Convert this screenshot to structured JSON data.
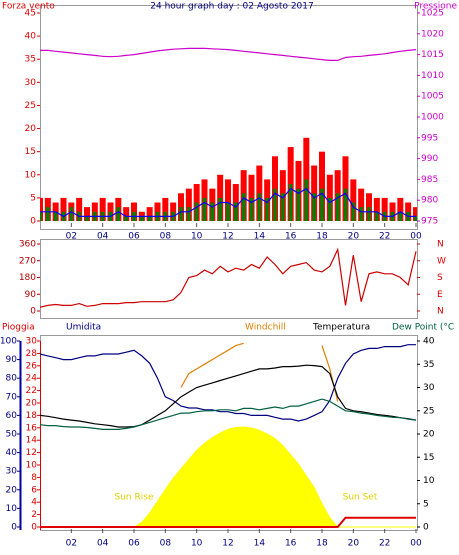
{
  "chart_data": [
    {
      "type": "bar",
      "title": "24 hour graph day : 02 Agosto 2017",
      "ylabel": "Forza vento",
      "y2label": "Pressione",
      "x": [
        0,
        0.5,
        1,
        1.5,
        2,
        2.5,
        3,
        3.5,
        4,
        4.5,
        5,
        5.5,
        6,
        6.5,
        7,
        7.5,
        8,
        8.5,
        9,
        9.5,
        10,
        10.5,
        11,
        11.5,
        12,
        12.5,
        13,
        13.5,
        14,
        14.5,
        15,
        15.5,
        16,
        16.5,
        17,
        17.5,
        18,
        18.5,
        19,
        19.5,
        20,
        20.5,
        21,
        21.5,
        22,
        22.5,
        23,
        23.5,
        24
      ],
      "xticks": [
        {
          "value": 2,
          "label": "02"
        },
        {
          "value": 4,
          "label": "04"
        },
        {
          "value": 6,
          "label": "06"
        },
        {
          "value": 8,
          "label": "08"
        },
        {
          "value": 10,
          "label": "10"
        },
        12,
        14,
        16,
        18,
        20,
        22,
        {
          "value": 24,
          "label": "00"
        }
      ],
      "ylim": [
        0,
        45
      ],
      "yticks": [
        0,
        5,
        10,
        15,
        20,
        25,
        30,
        35,
        40,
        45
      ],
      "y2lim": [
        975,
        1025
      ],
      "y2ticks": [
        975,
        980,
        985,
        990,
        995,
        1000,
        1005,
        1010,
        1015,
        1020,
        1025
      ],
      "series": [
        {
          "kind": "bar",
          "color": "#ff0000",
          "values": [
            5,
            5,
            4,
            5,
            4,
            5,
            3,
            4,
            5,
            4,
            5,
            3,
            4,
            2,
            3,
            4,
            5,
            4,
            6,
            7,
            8,
            9,
            7,
            10,
            9,
            8,
            11,
            10,
            12,
            9,
            14,
            11,
            16,
            13,
            18,
            12,
            15,
            10,
            11,
            14,
            9,
            7,
            6,
            5,
            5,
            4,
            5,
            4,
            3
          ]
        },
        {
          "kind": "bar",
          "color": "#008000",
          "values": [
            2,
            3,
            2,
            2,
            3,
            2,
            1,
            2,
            2,
            2,
            3,
            1,
            2,
            1,
            1,
            2,
            2,
            2,
            3,
            3,
            4,
            5,
            4,
            5,
            4,
            4,
            6,
            5,
            6,
            5,
            7,
            6,
            8,
            7,
            9,
            6,
            7,
            5,
            6,
            7,
            4,
            3,
            3,
            2,
            2,
            2,
            2,
            2,
            1
          ]
        },
        {
          "kind": "line",
          "color": "#0000ff",
          "values": [
            2,
            2,
            2,
            1,
            2,
            1,
            1,
            1,
            1,
            1,
            2,
            1,
            1,
            1,
            1,
            1,
            1,
            1,
            2,
            2,
            3,
            4,
            3,
            4,
            4,
            3,
            5,
            4,
            5,
            4,
            6,
            5,
            7,
            6,
            7,
            5,
            6,
            4,
            5,
            6,
            3,
            2,
            2,
            2,
            1,
            1,
            2,
            1,
            1
          ]
        },
        {
          "kind": "line",
          "axis": "y2",
          "color": "#cc00cc",
          "values": [
            1016,
            1016,
            1015.8,
            1015.6,
            1015.4,
            1015.2,
            1015,
            1014.8,
            1014.6,
            1014.5,
            1014.6,
            1014.8,
            1015,
            1015.3,
            1015.6,
            1015.9,
            1016.1,
            1016.3,
            1016.4,
            1016.5,
            1016.5,
            1016.5,
            1016.4,
            1016.3,
            1016.2,
            1016,
            1015.8,
            1015.6,
            1015.4,
            1015.2,
            1015,
            1014.8,
            1014.6,
            1014.4,
            1014.2,
            1014,
            1013.8,
            1013.6,
            1013.6,
            1014.3,
            1014.5,
            1014.6,
            1014.8,
            1015,
            1015.2,
            1015.5,
            1015.8,
            1016,
            1016.2
          ]
        }
      ]
    },
    {
      "type": "line",
      "x": [
        0,
        0.5,
        1,
        1.5,
        2,
        2.5,
        3,
        3.5,
        4,
        4.5,
        5,
        5.5,
        6,
        6.5,
        7,
        7.5,
        8,
        8.5,
        9,
        9.5,
        10,
        10.5,
        11,
        11.5,
        12,
        12.5,
        13,
        13.5,
        14,
        14.5,
        15,
        15.5,
        16,
        16.5,
        17,
        17.5,
        18,
        18.5,
        19,
        19.5,
        20,
        20.5,
        21,
        21.5,
        22,
        22.5,
        23,
        23.5,
        24
      ],
      "ylim": [
        0,
        360
      ],
      "yticks": [
        0,
        90,
        180,
        270,
        360
      ],
      "y2lim": [
        0,
        360
      ],
      "y2ticks": [
        {
          "value": 0,
          "label": "N"
        },
        {
          "value": 90,
          "label": "E"
        },
        {
          "value": 180,
          "label": "S"
        },
        {
          "value": 270,
          "label": "W"
        },
        {
          "value": 360,
          "label": "N"
        }
      ],
      "series": [
        {
          "kind": "line",
          "color": "#cc0000",
          "values": [
            20,
            30,
            35,
            30,
            30,
            40,
            25,
            30,
            40,
            40,
            40,
            45,
            45,
            50,
            50,
            50,
            50,
            60,
            100,
            180,
            190,
            220,
            200,
            240,
            210,
            230,
            220,
            250,
            230,
            290,
            250,
            200,
            240,
            250,
            260,
            220,
            210,
            240,
            330,
            30,
            300,
            50,
            200,
            210,
            200,
            200,
            180,
            140,
            320
          ]
        }
      ]
    },
    {
      "type": "line",
      "annotations": [
        "Sun Rise",
        "Sun Set"
      ],
      "x": [
        0,
        0.5,
        1,
        1.5,
        2,
        2.5,
        3,
        3.5,
        4,
        4.5,
        5,
        5.5,
        6,
        6.5,
        7,
        7.5,
        8,
        8.5,
        9,
        9.5,
        10,
        10.5,
        11,
        11.5,
        12,
        12.5,
        13,
        13.5,
        14,
        14.5,
        15,
        15.5,
        16,
        16.5,
        17,
        17.5,
        18,
        18.5,
        19,
        19.5,
        20,
        20.5,
        21,
        21.5,
        22,
        22.5,
        23,
        23.5,
        24
      ],
      "xticks": [
        {
          "value": 2,
          "label": "02"
        },
        {
          "value": 4,
          "label": "04"
        },
        {
          "value": 6,
          "label": "06"
        },
        {
          "value": 8,
          "label": "08"
        },
        {
          "value": 10,
          "label": "10"
        },
        12,
        14,
        16,
        18,
        20,
        22,
        {
          "value": 24,
          "label": "00"
        }
      ],
      "ylim": [
        0,
        100
      ],
      "yticks": [
        0,
        10,
        20,
        30,
        40,
        50,
        60,
        70,
        80,
        90,
        100
      ],
      "y3lim": [
        0,
        30
      ],
      "y3ticks": [
        0,
        2,
        4,
        6,
        8,
        10,
        12,
        14,
        16,
        18,
        20,
        22,
        24,
        26,
        28,
        30
      ],
      "y2lim": [
        0,
        40
      ],
      "y2ticks": [
        0,
        5,
        10,
        15,
        20,
        25,
        30,
        35,
        40
      ],
      "series": [
        {
          "kind": "area",
          "axis": "y2",
          "color": "#ffff00",
          "values": [
            0,
            0,
            0,
            0,
            0,
            0,
            0,
            0,
            0,
            0,
            0,
            0,
            0,
            1,
            3,
            5.5,
            8,
            10.5,
            12.5,
            14.5,
            16.5,
            18,
            19.2,
            20.2,
            21,
            21.4,
            21.5,
            21.3,
            20.8,
            20,
            19,
            17.5,
            15.5,
            13.5,
            11,
            8.5,
            5,
            2,
            0,
            0,
            0,
            0,
            0,
            0,
            0,
            0,
            0,
            0,
            0
          ]
        },
        {
          "kind": "line",
          "name": "Pioggia",
          "axis": "y3",
          "color": "#e00000",
          "values": [
            0,
            0,
            0,
            0,
            0,
            0,
            0,
            0,
            0,
            0,
            0,
            0,
            0,
            0,
            0,
            0,
            0,
            0,
            0,
            0,
            0,
            0,
            0,
            0,
            0,
            0,
            0,
            0,
            0,
            0,
            0,
            0,
            0,
            0,
            0,
            0,
            0,
            0,
            0,
            1.5,
            1.5,
            1.5,
            1.5,
            1.5,
            1.5,
            1.5,
            1.5,
            1.5,
            1.5
          ]
        },
        {
          "kind": "line",
          "name": "Umidita",
          "color": "#000080",
          "values": [
            93,
            92,
            91,
            90,
            90,
            91,
            92,
            92,
            93,
            93,
            93,
            94,
            95,
            92,
            88,
            80,
            70,
            68,
            65,
            64,
            64,
            63,
            63,
            62,
            62,
            61,
            61,
            60,
            60,
            60,
            59,
            58,
            58,
            57,
            58,
            60,
            62,
            68,
            80,
            88,
            93,
            95,
            96,
            96,
            97,
            97,
            97,
            98,
            98
          ]
        },
        {
          "kind": "line",
          "name": "Windchill",
          "axis": "y2",
          "color": "#e08000",
          "values": [
            null,
            null,
            null,
            null,
            null,
            null,
            null,
            null,
            null,
            null,
            null,
            null,
            null,
            null,
            null,
            null,
            null,
            null,
            30,
            33,
            34,
            35,
            36,
            37,
            38,
            39,
            39.5,
            null,
            null,
            null,
            null,
            null,
            null,
            null,
            null,
            null,
            39,
            34,
            27,
            null,
            null,
            null,
            null,
            null,
            null,
            null,
            null,
            null,
            null
          ]
        },
        {
          "kind": "line",
          "name": "Temperatura",
          "axis": "y2",
          "color": "#000000",
          "values": [
            24,
            23.8,
            23.5,
            23.2,
            23,
            22.8,
            22.5,
            22.2,
            22,
            21.8,
            21.5,
            21.5,
            21.6,
            22,
            23,
            24,
            25,
            26.5,
            28,
            29,
            30,
            30.5,
            31,
            31.5,
            32,
            32.5,
            33,
            33.5,
            34,
            34,
            34.2,
            34.5,
            34.5,
            34.6,
            34.8,
            34.7,
            34.5,
            33,
            28,
            25.5,
            25,
            24.8,
            24.5,
            24.2,
            24,
            23.8,
            23.5,
            23.3,
            23
          ]
        },
        {
          "kind": "line",
          "name": "Dew Point (°C",
          "axis": "y2",
          "color": "#006040",
          "values": [
            22,
            21.8,
            21.8,
            21.6,
            21.5,
            21.5,
            21.4,
            21.2,
            21,
            21,
            21,
            21.2,
            21.5,
            22,
            22.5,
            23,
            23.5,
            24,
            24.5,
            24.5,
            24.8,
            25,
            25,
            25.2,
            25.2,
            25,
            25.5,
            25.5,
            25.2,
            25.5,
            25.8,
            25.5,
            26,
            26,
            26.5,
            27,
            27.5,
            27,
            26,
            25,
            24.8,
            24.5,
            24.3,
            24,
            23.8,
            23.6,
            23.5,
            23.2,
            23
          ]
        }
      ]
    }
  ]
}
